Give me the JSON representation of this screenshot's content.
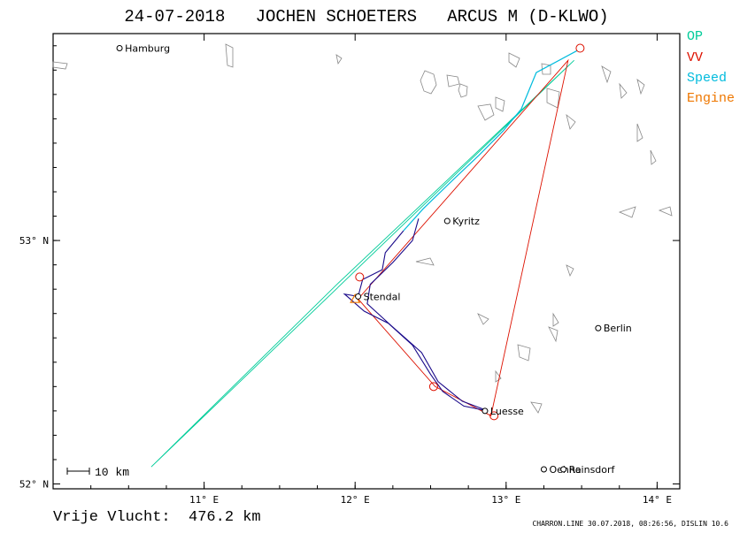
{
  "header": {
    "title": "24-07-2018   JOCHEN SCHOETERS   ARCUS M (D-KLWO)"
  },
  "legend": [
    {
      "label": "OP",
      "color": "#00cc99"
    },
    {
      "label": "VV",
      "color": "#dd1100"
    },
    {
      "label": "Speed",
      "color": "#00bbdd"
    },
    {
      "label": "Engine",
      "color": "#ee7700"
    }
  ],
  "map": {
    "lon_range": [
      10.0,
      14.15
    ],
    "lat_range": [
      51.98,
      53.85
    ],
    "x_ticks": [
      {
        "value": 11,
        "label": "11° E"
      },
      {
        "value": 12,
        "label": "12° E"
      },
      {
        "value": 13,
        "label": "13° E"
      },
      {
        "value": 14,
        "label": "14° E"
      }
    ],
    "y_ticks": [
      {
        "value": 52,
        "label": "52° N"
      },
      {
        "value": 53,
        "label": "53° N"
      }
    ],
    "scale_label": "10 km",
    "cities": [
      {
        "name": "Hamburg",
        "lon": 10.44,
        "lat": 53.79
      },
      {
        "name": "Kyritz",
        "lon": 12.61,
        "lat": 53.08
      },
      {
        "name": "Stendal",
        "lon": 12.02,
        "lat": 52.77
      },
      {
        "name": "Berlin",
        "lon": 13.61,
        "lat": 52.64
      },
      {
        "name": "Luesse",
        "lon": 12.86,
        "lat": 52.3
      },
      {
        "name": "Oehna",
        "lon": 13.25,
        "lat": 52.06
      },
      {
        "name": "Reinsdorf",
        "lon": 13.38,
        "lat": 52.06
      }
    ],
    "turnpoints": [
      {
        "lon": 13.49,
        "lat": 53.79
      },
      {
        "lon": 12.03,
        "lat": 52.85
      },
      {
        "lon": 12.52,
        "lat": 52.4
      },
      {
        "lon": 12.92,
        "lat": 52.28
      }
    ],
    "op_polygon": [
      {
        "lon": 13.45,
        "lat": 53.74
      },
      {
        "lon": 11.88,
        "lat": 52.82
      },
      {
        "lon": 10.65,
        "lat": 52.07
      }
    ],
    "vv_polygon": [
      {
        "lon": 13.41,
        "lat": 53.74
      },
      {
        "lon": 12.02,
        "lat": 52.76
      },
      {
        "lon": 12.53,
        "lat": 52.4
      },
      {
        "lon": 12.9,
        "lat": 52.28
      }
    ],
    "speed_track": [
      {
        "lon": 13.47,
        "lat": 53.78
      },
      {
        "lon": 13.2,
        "lat": 53.69
      },
      {
        "lon": 13.1,
        "lat": 53.54
      },
      {
        "lon": 12.98,
        "lat": 53.45
      },
      {
        "lon": 12.82,
        "lat": 53.35
      },
      {
        "lon": 12.65,
        "lat": 53.25
      },
      {
        "lon": 12.45,
        "lat": 53.13
      },
      {
        "lon": 12.32,
        "lat": 53.04
      }
    ],
    "flight_track": [
      {
        "lon": 12.32,
        "lat": 53.04
      },
      {
        "lon": 12.2,
        "lat": 52.95
      },
      {
        "lon": 12.18,
        "lat": 52.88
      },
      {
        "lon": 12.05,
        "lat": 52.84
      },
      {
        "lon": 12.02,
        "lat": 52.77
      },
      {
        "lon": 11.93,
        "lat": 52.78
      },
      {
        "lon": 12.06,
        "lat": 52.71
      },
      {
        "lon": 12.22,
        "lat": 52.66
      },
      {
        "lon": 12.38,
        "lat": 52.57
      },
      {
        "lon": 12.5,
        "lat": 52.45
      },
      {
        "lon": 12.58,
        "lat": 52.38
      },
      {
        "lon": 12.72,
        "lat": 52.32
      },
      {
        "lon": 12.88,
        "lat": 52.3
      },
      {
        "lon": 12.71,
        "lat": 52.34
      },
      {
        "lon": 12.55,
        "lat": 52.42
      },
      {
        "lon": 12.44,
        "lat": 52.54
      },
      {
        "lon": 12.24,
        "lat": 52.65
      },
      {
        "lon": 12.08,
        "lat": 52.74
      },
      {
        "lon": 12.1,
        "lat": 52.82
      },
      {
        "lon": 12.25,
        "lat": 52.91
      },
      {
        "lon": 12.38,
        "lat": 53.0
      },
      {
        "lon": 12.42,
        "lat": 53.09
      }
    ],
    "engine_marks": [
      {
        "lon": 12.0,
        "lat": 52.76
      }
    ]
  },
  "summary": {
    "distance_text": "Vrije Vlucht:  476.2 km"
  },
  "footer": {
    "text": "CHARRON.LINE 30.07.2018, 08:26:56, DISLIN 10.6"
  }
}
